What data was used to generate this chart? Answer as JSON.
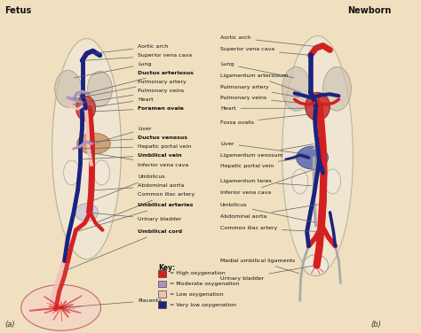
{
  "background_color": "#f0e0c0",
  "fig_width": 4.74,
  "fig_height": 3.76,
  "dpi": 100,
  "left_title": "Fetus",
  "right_title": "Newborn",
  "left_label": "(a)",
  "right_label": "(b)",
  "bold_fetus_labels": [
    "Ductus arteriosus",
    "Foramen ovale",
    "Ductus venosus",
    "Umbilical vein",
    "Umbilical arteries",
    "Umbilical cord"
  ],
  "key_title": "Key:",
  "key_items": [
    {
      "label": " = High oxygenation",
      "color": "#d42020"
    },
    {
      "label": " = Moderate oxygenation",
      "color": "#b090c0"
    },
    {
      "label": " = Low oxygenation",
      "color": "#f0c0b8"
    },
    {
      "label": " = Very low oxygenation",
      "color": "#1a237e"
    }
  ],
  "colors": {
    "ho": "#d42020",
    "mo": "#b090c0",
    "lo": "#f0c0b8",
    "vlo": "#1a237e",
    "gray": "#aaaaaa",
    "body": "#e8d8c0",
    "lung": "#ccc0b0",
    "liver": "#c89060",
    "heart_red": "#cc3333",
    "bladder": "#c8c0d8",
    "outline": "#888870",
    "white_body": "#f0eae0"
  }
}
